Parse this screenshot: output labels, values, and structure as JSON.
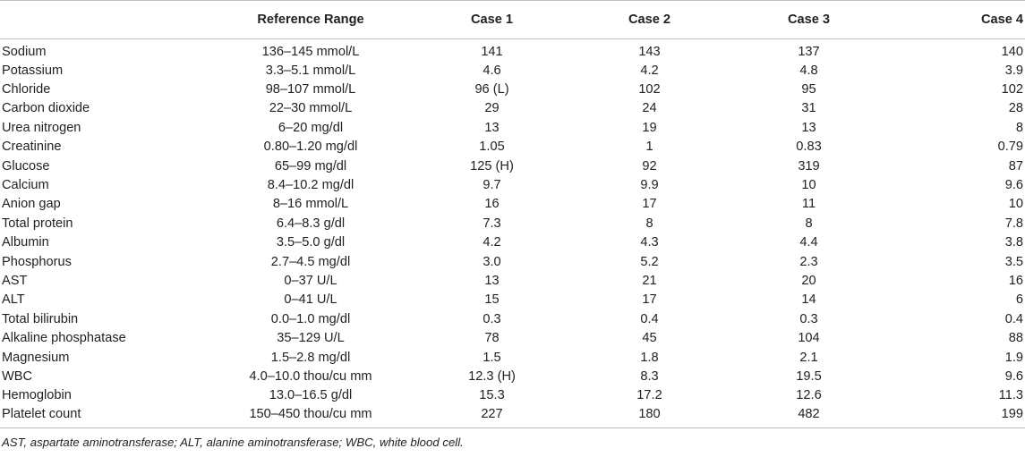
{
  "table": {
    "headers": [
      "",
      "Reference Range",
      "Case 1",
      "Case 2",
      "Case 3",
      "Case 4"
    ],
    "rows": [
      [
        "Sodium",
        "136–145 mmol/L",
        "141",
        "143",
        "137",
        "140"
      ],
      [
        "Potassium",
        "3.3–5.1 mmol/L",
        "4.6",
        "4.2",
        "4.8",
        "3.9"
      ],
      [
        "Chloride",
        "98–107 mmol/L",
        "96 (L)",
        "102",
        "95",
        "102"
      ],
      [
        "Carbon dioxide",
        "22–30 mmol/L",
        "29",
        "24",
        "31",
        "28"
      ],
      [
        "Urea nitrogen",
        "6–20 mg/dl",
        "13",
        "19",
        "13",
        "8"
      ],
      [
        "Creatinine",
        "0.80–1.20 mg/dl",
        "1.05",
        "1",
        "0.83",
        "0.79"
      ],
      [
        "Glucose",
        "65–99 mg/dl",
        "125 (H)",
        "92",
        "319",
        "87"
      ],
      [
        "Calcium",
        "8.4–10.2 mg/dl",
        "9.7",
        "9.9",
        "10",
        "9.6"
      ],
      [
        "Anion gap",
        "8–16 mmol/L",
        "16",
        "17",
        "11",
        "10"
      ],
      [
        "Total protein",
        "6.4–8.3 g/dl",
        "7.3",
        "8",
        "8",
        "7.8"
      ],
      [
        "Albumin",
        "3.5–5.0 g/dl",
        "4.2",
        "4.3",
        "4.4",
        "3.8"
      ],
      [
        "Phosphorus",
        "2.7–4.5 mg/dl",
        "3.0",
        "5.2",
        "2.3",
        "3.5"
      ],
      [
        "AST",
        "0–37 U/L",
        "13",
        "21",
        "20",
        "16"
      ],
      [
        "ALT",
        "0–41 U/L",
        "15",
        "17",
        "14",
        "6"
      ],
      [
        "Total bilirubin",
        "0.0–1.0 mg/dl",
        "0.3",
        "0.4",
        "0.3",
        "0.4"
      ],
      [
        "Alkaline phosphatase",
        "35–129 U/L",
        "78",
        "45",
        "104",
        "88"
      ],
      [
        "Magnesium",
        "1.5–2.8 mg/dl",
        "1.5",
        "1.8",
        "2.1",
        "1.9"
      ],
      [
        "WBC",
        "4.0–10.0 thou/cu mm",
        "12.3 (H)",
        "8.3",
        "19.5",
        "9.6"
      ],
      [
        "Hemoglobin",
        "13.0–16.5 g/dl",
        "15.3",
        "17.2",
        "12.6",
        "11.3"
      ],
      [
        "Platelet count",
        "150–450 thou/cu mm",
        "227",
        "180",
        "482",
        "199"
      ]
    ]
  },
  "footnote": "AST, aspartate aminotransferase; ALT, alanine aminotransferase; WBC, white blood cell."
}
